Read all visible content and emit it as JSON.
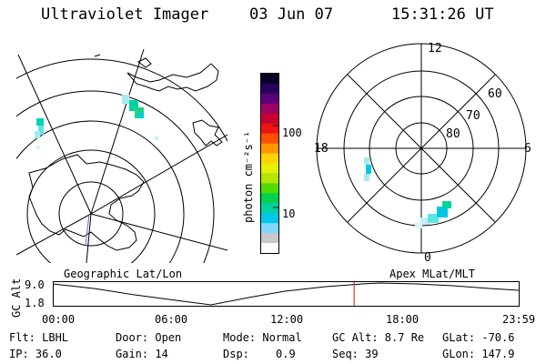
{
  "header": {
    "title": "Ultraviolet Imager",
    "date": "03 Jun 07",
    "time": "15:31:26 UT"
  },
  "colorbar": {
    "unit_label": "photon cm⁻²s⁻¹",
    "tick_100": "100",
    "tick_10": "10",
    "colors": [
      "#ffffff",
      "#c8c8c8",
      "#7fd8ff",
      "#00c8e6",
      "#00d2a0",
      "#00d250",
      "#50dc00",
      "#b4e600",
      "#e6f000",
      "#ffd200",
      "#ff9600",
      "#ff5000",
      "#f01414",
      "#c80032",
      "#a00064",
      "#5a0078",
      "#28005a",
      "#0a0028"
    ]
  },
  "geo_map": {
    "label": "Geographic Lat/Lon"
  },
  "polar_map": {
    "label": "Apex MLat/MLT",
    "mlt_12": "12",
    "mlt_18": "18",
    "mlt_6": "6",
    "mlt_0": "0",
    "lat_60": "60",
    "lat_70": "70",
    "lat_80": "80"
  },
  "orbit": {
    "axis_label": "GC Alt",
    "y_top": "9.0",
    "y_bottom": "1.8",
    "x_ticks": [
      "00:00",
      "06:00",
      "12:00",
      "18:00",
      "23:59"
    ],
    "current_time_fraction": 0.6468,
    "marker_color": "#d01010"
  },
  "info": {
    "filter": "Flt: LBHL",
    "ip": "IP: 36.0",
    "door": "Door: Open",
    "gain": "Gain: 14",
    "mode": "Mode: Normal",
    "dsp_label": "Dsp:",
    "dsp_value": "0.9",
    "gc_alt": "GC Alt: 8.7 Re",
    "seq": "Seq: 39",
    "glat": "GLat: -70.6",
    "glon": "GLon: 147.9"
  }
}
